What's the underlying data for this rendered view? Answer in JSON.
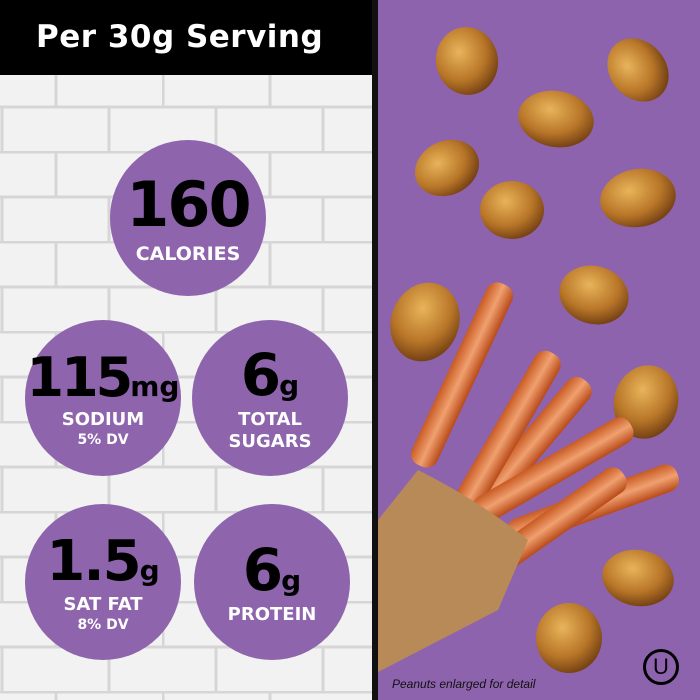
{
  "header": {
    "title": "Per 30g Serving"
  },
  "nutrition": [
    {
      "value": "160",
      "unit": "",
      "label": "CALORIES",
      "dv": ""
    },
    {
      "value": "115",
      "unit": "mg",
      "label": "SODIUM",
      "dv": "5% DV"
    },
    {
      "value": "6",
      "unit": "g",
      "label": "TOTAL SUGARS",
      "dv": ""
    },
    {
      "value": "1.5",
      "unit": "g",
      "label": "SAT FAT",
      "dv": "8% DV"
    },
    {
      "value": "6",
      "unit": "g",
      "label": "PROTEIN",
      "dv": ""
    }
  ],
  "footnote": "Peanuts enlarged for detail",
  "certification": {
    "symbol": "U",
    "icon": "ou-kosher-icon"
  },
  "colors": {
    "purple": "#8e63ae",
    "header": "#000000",
    "tile": "#efefef"
  }
}
